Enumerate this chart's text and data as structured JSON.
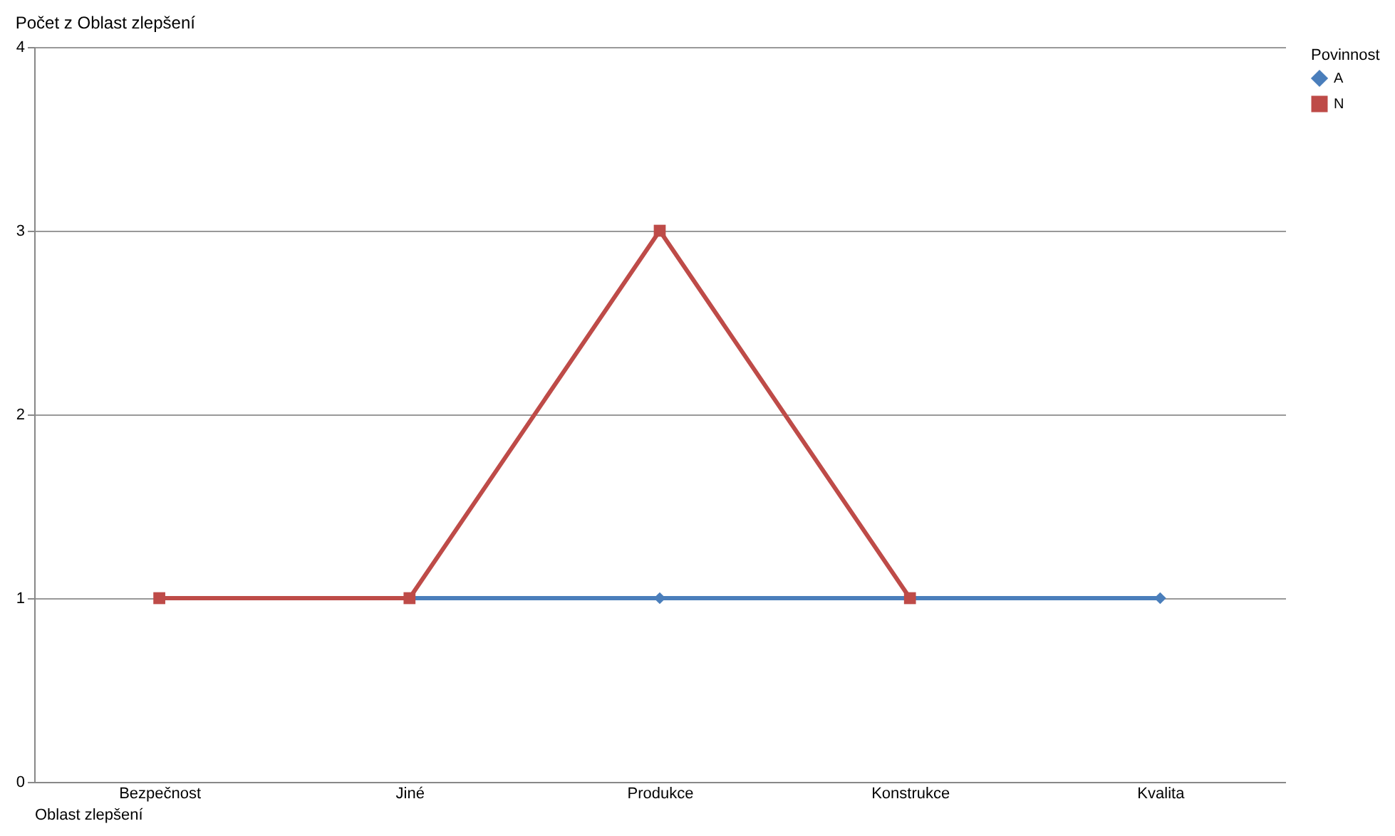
{
  "chart_data": {
    "type": "line",
    "title": "Počet z Oblast zlepšení",
    "xlabel": "Oblast zlepšení",
    "legend_title": "Povinnost",
    "categories": [
      "Bezpečnost",
      "Jiné",
      "Produkce",
      "Konstrukce",
      "Kvalita"
    ],
    "series": [
      {
        "name": "A",
        "color": "#4a7ebb",
        "marker": "diamond",
        "values": [
          null,
          1,
          1,
          1,
          1
        ]
      },
      {
        "name": "N",
        "color": "#be4b48",
        "marker": "square",
        "values": [
          1,
          1,
          3,
          1,
          null
        ]
      }
    ],
    "ylim": [
      0,
      4
    ],
    "yticks": [
      0,
      1,
      2,
      3,
      4
    ],
    "grid": "y",
    "legend": "right",
    "line_style": "solid"
  }
}
